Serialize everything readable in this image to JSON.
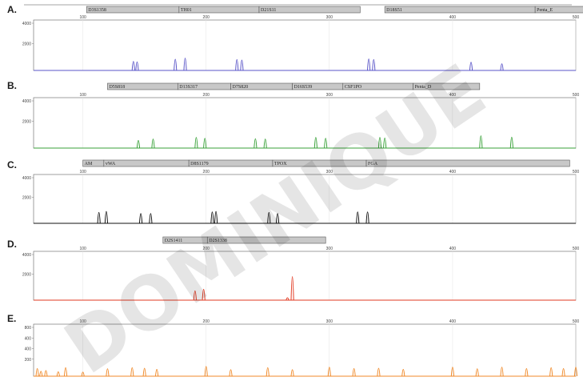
{
  "chart_data": [
    {
      "type": "line",
      "panel": "A.",
      "color": "#5a55c8",
      "x_ticks": [
        "100",
        "200",
        "300",
        "400",
        "500"
      ],
      "y_ticks": [
        "4000",
        "2000"
      ],
      "xlim": [
        60,
        500
      ],
      "ymax": 4600,
      "loci": [
        {
          "name": "D3S1358",
          "start": 103,
          "end": 178
        },
        {
          "name": "TH01",
          "start": 178,
          "end": 243
        },
        {
          "name": "D21S11",
          "start": 243,
          "end": 325
        },
        {
          "name": "D18S51",
          "start": 345,
          "end": 467
        },
        {
          "name": "Penta_E",
          "start": 467,
          "end": 578
        }
      ],
      "peaks": [
        {
          "x": 141,
          "h": 1500
        },
        {
          "x": 144,
          "h": 1400
        },
        {
          "x": 175,
          "h": 1900
        },
        {
          "x": 183,
          "h": 2100
        },
        {
          "x": 225,
          "h": 1850
        },
        {
          "x": 229,
          "h": 1750
        },
        {
          "x": 332,
          "h": 1950
        },
        {
          "x": 336,
          "h": 1850
        },
        {
          "x": 415,
          "h": 1350
        },
        {
          "x": 440,
          "h": 1050
        }
      ]
    },
    {
      "type": "line",
      "panel": "B.",
      "color": "#3aa23a",
      "x_ticks": [
        "100",
        "200",
        "300",
        "400",
        "500"
      ],
      "y_ticks": [
        "4000",
        "2000"
      ],
      "xlim": [
        60,
        500
      ],
      "ymax": 4600,
      "loci": [
        {
          "name": "D5S818",
          "start": 120,
          "end": 177
        },
        {
          "name": "D13S317",
          "start": 177,
          "end": 220
        },
        {
          "name": "D7S820",
          "start": 220,
          "end": 270
        },
        {
          "name": "D16S539",
          "start": 270,
          "end": 311
        },
        {
          "name": "CSF1PO",
          "start": 311,
          "end": 368
        },
        {
          "name": "Penta_D",
          "start": 368,
          "end": 422
        }
      ],
      "peaks": [
        {
          "x": 145,
          "h": 1250
        },
        {
          "x": 157,
          "h": 1500
        },
        {
          "x": 192,
          "h": 1800
        },
        {
          "x": 199,
          "h": 1650
        },
        {
          "x": 240,
          "h": 1550
        },
        {
          "x": 248,
          "h": 1500
        },
        {
          "x": 289,
          "h": 1800
        },
        {
          "x": 297,
          "h": 1650
        },
        {
          "x": 341,
          "h": 1800
        },
        {
          "x": 345,
          "h": 1700
        },
        {
          "x": 423,
          "h": 2100
        },
        {
          "x": 448,
          "h": 1850
        }
      ]
    },
    {
      "type": "line",
      "panel": "C.",
      "color": "#111111",
      "x_ticks": [
        "100",
        "200",
        "300",
        "400",
        "500"
      ],
      "y_ticks": [
        "4000",
        "2000"
      ],
      "xlim": [
        60,
        500
      ],
      "ymax": 4600,
      "loci": [
        {
          "name": "AM",
          "start": 100,
          "end": 117
        },
        {
          "name": "vWA",
          "start": 117,
          "end": 186
        },
        {
          "name": "D8S1179",
          "start": 186,
          "end": 254
        },
        {
          "name": "TPOX",
          "start": 254,
          "end": 330
        },
        {
          "name": "FGA",
          "start": 330,
          "end": 495
        }
      ],
      "peaks": [
        {
          "x": 113,
          "h": 1900
        },
        {
          "x": 119,
          "h": 2100
        },
        {
          "x": 147,
          "h": 1700
        },
        {
          "x": 155,
          "h": 1700
        },
        {
          "x": 205,
          "h": 2000
        },
        {
          "x": 208,
          "h": 2100
        },
        {
          "x": 251,
          "h": 1900
        },
        {
          "x": 258,
          "h": 1700
        },
        {
          "x": 323,
          "h": 2000
        },
        {
          "x": 331,
          "h": 2000
        }
      ]
    },
    {
      "type": "line",
      "panel": "D.",
      "color": "#e23a22",
      "x_ticks": [
        "100",
        "200",
        "300",
        "400",
        "500"
      ],
      "y_ticks": [
        "4000",
        "2000"
      ],
      "xlim": [
        60,
        500
      ],
      "ymax": 4600,
      "loci": [
        {
          "name": "D2S1411",
          "start": 165,
          "end": 201
        },
        {
          "name": "D2S1338",
          "start": 201,
          "end": 297
        }
      ],
      "peaks": [
        {
          "x": 191,
          "h": 1600
        },
        {
          "x": 198,
          "h": 1900
        },
        {
          "x": 270,
          "h": 4300
        },
        {
          "x": 266,
          "h": 300
        }
      ]
    },
    {
      "type": "line",
      "panel": "E.",
      "color": "#f08a2a",
      "x_ticks": [
        "100",
        "200",
        "300",
        "400",
        "500"
      ],
      "y_ticks": [
        "800",
        "400",
        "400",
        "200"
      ],
      "xlim": [
        60,
        500
      ],
      "ymax": 950,
      "loci": [],
      "peaks": [
        {
          "x": 63,
          "h": 250
        },
        {
          "x": 66,
          "h": 150
        },
        {
          "x": 70,
          "h": 180
        },
        {
          "x": 80,
          "h": 130
        },
        {
          "x": 86,
          "h": 280
        },
        {
          "x": 100,
          "h": 120
        },
        {
          "x": 120,
          "h": 240
        },
        {
          "x": 140,
          "h": 280
        },
        {
          "x": 150,
          "h": 260
        },
        {
          "x": 160,
          "h": 220
        },
        {
          "x": 200,
          "h": 330
        },
        {
          "x": 220,
          "h": 210
        },
        {
          "x": 250,
          "h": 280
        },
        {
          "x": 270,
          "h": 210
        },
        {
          "x": 300,
          "h": 300
        },
        {
          "x": 320,
          "h": 250
        },
        {
          "x": 340,
          "h": 260
        },
        {
          "x": 360,
          "h": 220
        },
        {
          "x": 400,
          "h": 300
        },
        {
          "x": 420,
          "h": 240
        },
        {
          "x": 440,
          "h": 300
        },
        {
          "x": 460,
          "h": 250
        },
        {
          "x": 480,
          "h": 280
        },
        {
          "x": 490,
          "h": 250
        },
        {
          "x": 500,
          "h": 300
        }
      ]
    }
  ],
  "watermark": {
    "text": "DOMINIQUE",
    "color": "#000000"
  }
}
